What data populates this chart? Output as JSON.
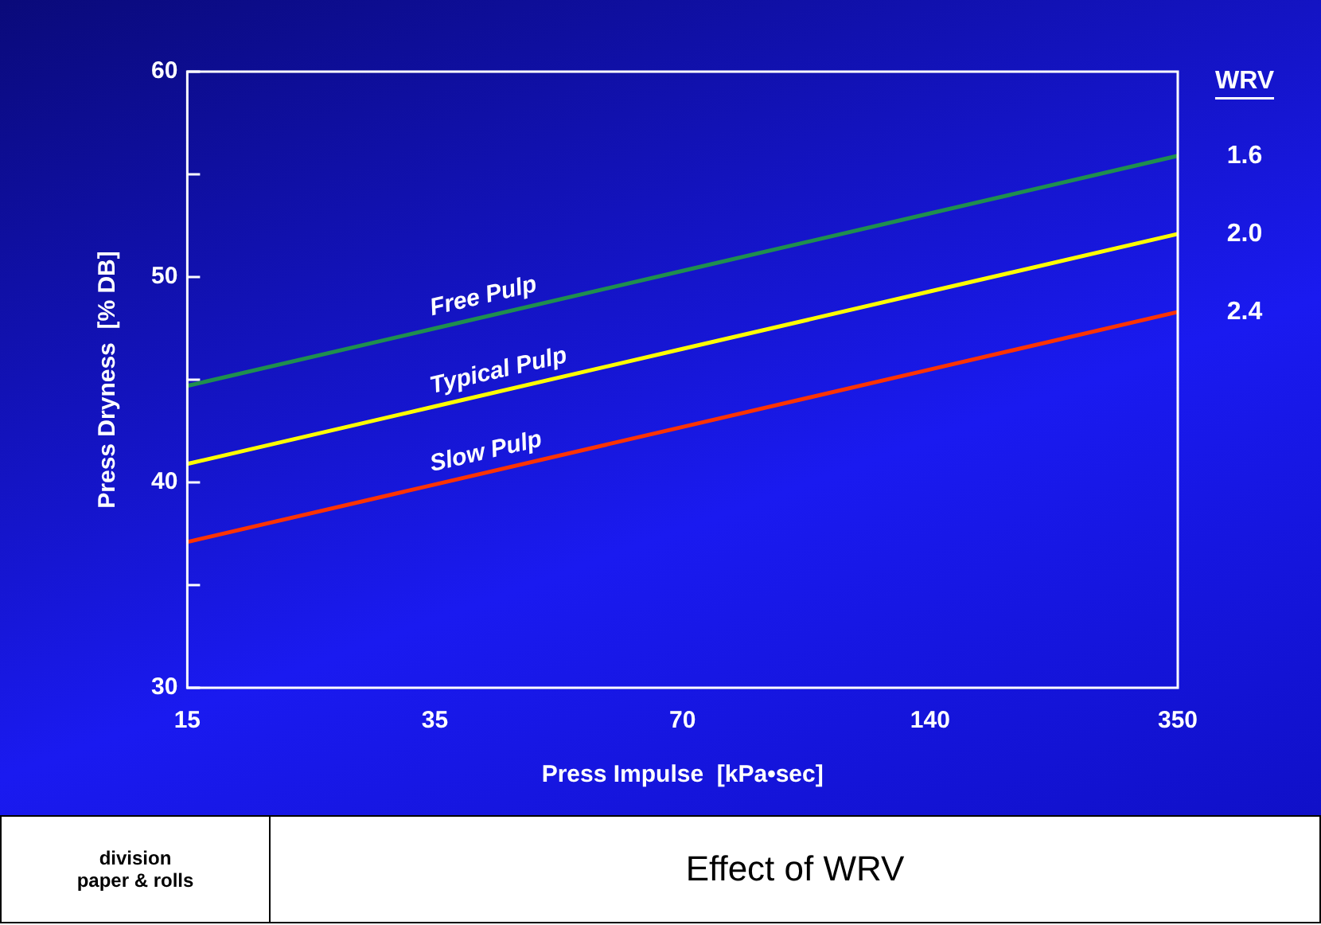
{
  "chart_data": {
    "type": "line",
    "title": "Effect of WRV",
    "xlabel": "Press Impulse  [kPa•sec]",
    "ylabel": "Press Dryness  [% DB]",
    "categories": [
      "15",
      "35",
      "70",
      "140",
      "350"
    ],
    "series": [
      {
        "name": "Free Pulp",
        "color": "#1f8f4e",
        "values": [
          44.7,
          47.5,
          50.3,
          53.1,
          55.9
        ]
      },
      {
        "name": "Typical Pulp",
        "color": "#ffff00",
        "values": [
          40.9,
          43.7,
          46.5,
          49.3,
          52.1
        ]
      },
      {
        "name": "Slow Pulp",
        "color": "#ff3300",
        "values": [
          37.1,
          39.9,
          42.7,
          45.5,
          48.3
        ]
      }
    ],
    "ylim": [
      30,
      60
    ],
    "yticks": [
      30,
      {
        "value": 35,
        "label": null
      },
      40,
      {
        "value": 45,
        "label": null
      },
      50,
      {
        "value": 55,
        "label": null
      },
      60
    ],
    "grid": false,
    "legend": false,
    "marker": "none",
    "line_style": "solid",
    "annotations": [
      "WRV",
      {
        "text": "1.6",
        "x": "350",
        "y": 55.9
      },
      {
        "text": "2.0",
        "x": "350",
        "y": 52.1
      },
      {
        "text": "2.4",
        "x": "350",
        "y": 48.3
      },
      "division\npaper & rolls"
    ]
  }
}
